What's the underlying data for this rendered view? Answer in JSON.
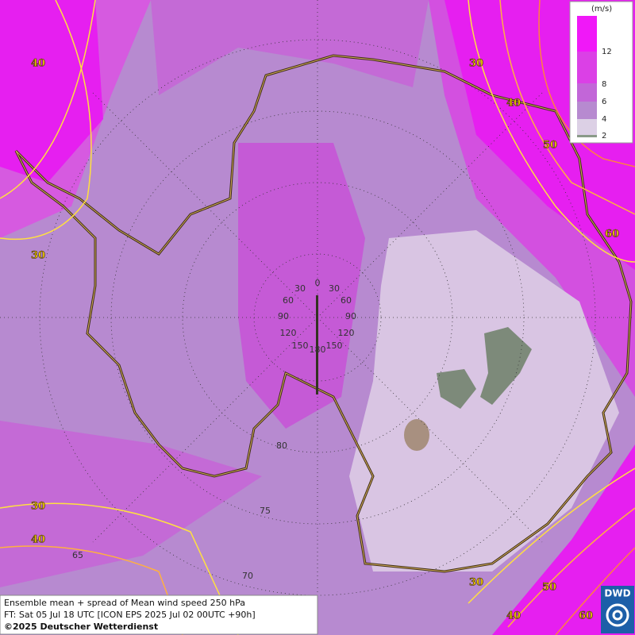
{
  "map": {
    "contour_labels": [
      40,
      30,
      40,
      50,
      60,
      30,
      30,
      40,
      30,
      50,
      40,
      60
    ],
    "graticule_labels": [
      0,
      30,
      30,
      60,
      60,
      90,
      90,
      120,
      120,
      150,
      150,
      180,
      80,
      75,
      65,
      70
    ],
    "legend": {
      "unit": "(m/s)",
      "levels": [
        12,
        8,
        6,
        4,
        2
      ]
    },
    "footer": {
      "line1": "Ensemble mean + spread of Mean wind speed 250 hPa",
      "line2": "FT: Sat 05 Jul 18 UTC [ICON EPS 2025 Jul 02 00UTC +90h]",
      "line3": "©2025 Deutscher Wetterdienst"
    },
    "logo": "DWD"
  }
}
